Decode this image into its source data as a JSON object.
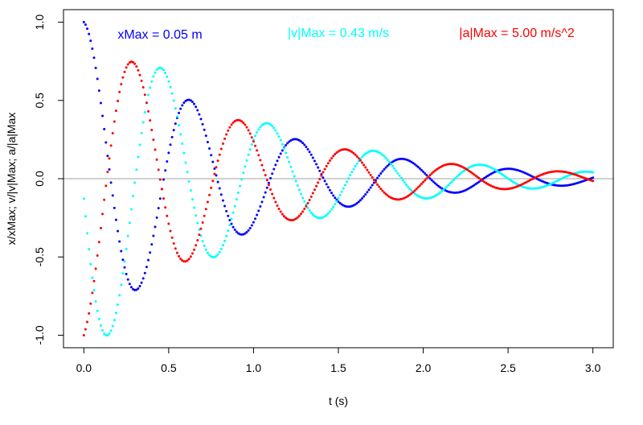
{
  "chart_data": {
    "type": "scatter",
    "title": "",
    "xlabel": "t (s)",
    "ylabel": "x/xMax;  v/|v|Max;  a/|a|Max",
    "xlim": [
      -0.12,
      3.12
    ],
    "ylim": [
      -1.08,
      1.08
    ],
    "x_ticks": [
      "0.0",
      "0.5",
      "1.0",
      "1.5",
      "2.0",
      "2.5",
      "3.0"
    ],
    "y_ticks": [
      "-1.0",
      "-0.5",
      "0.0",
      "0.5",
      "1.0"
    ],
    "reference_line_y": 0,
    "annotations": [
      {
        "text": "xMax = 0.05 m",
        "color": "#0000ff"
      },
      {
        "text": "|v|Max = 0.43 m/s",
        "color": "#00ffff"
      },
      {
        "text": "|a|Max = 5.00 m/s^2",
        "color": "#ff0000"
      }
    ],
    "model": {
      "period_s": 0.628,
      "damping_per_s": 1.1,
      "t_start": 0,
      "t_end": 3.0,
      "t_step": 0.01
    },
    "series": [
      {
        "key": "x",
        "color": "#0000ff",
        "peaks": [
          [
            0.0,
            1.0
          ],
          [
            0.32,
            -0.73
          ],
          [
            0.63,
            0.53
          ],
          [
            0.95,
            -0.38
          ],
          [
            1.26,
            0.28
          ],
          [
            1.58,
            -0.2
          ],
          [
            1.89,
            0.15
          ],
          [
            2.21,
            -0.11
          ],
          [
            2.52,
            0.08
          ],
          [
            2.84,
            -0.06
          ]
        ]
      },
      {
        "key": "v",
        "color": "#00ffff",
        "peaks": [
          [
            0.16,
            -1.0
          ],
          [
            0.47,
            0.73
          ],
          [
            0.79,
            -0.53
          ],
          [
            1.1,
            0.38
          ],
          [
            1.42,
            -0.28
          ],
          [
            1.73,
            0.2
          ],
          [
            2.05,
            -0.15
          ],
          [
            2.36,
            0.11
          ],
          [
            2.68,
            -0.08
          ],
          [
            2.99,
            0.06
          ]
        ]
      },
      {
        "key": "a",
        "color": "#ff0000",
        "peaks": [
          [
            0.0,
            -1.0
          ],
          [
            0.3,
            0.74
          ],
          [
            0.62,
            -0.54
          ],
          [
            0.93,
            0.39
          ],
          [
            1.25,
            -0.28
          ],
          [
            1.56,
            0.21
          ],
          [
            1.88,
            -0.15
          ],
          [
            2.19,
            0.11
          ],
          [
            2.51,
            -0.08
          ],
          [
            2.82,
            0.06
          ]
        ]
      }
    ]
  }
}
